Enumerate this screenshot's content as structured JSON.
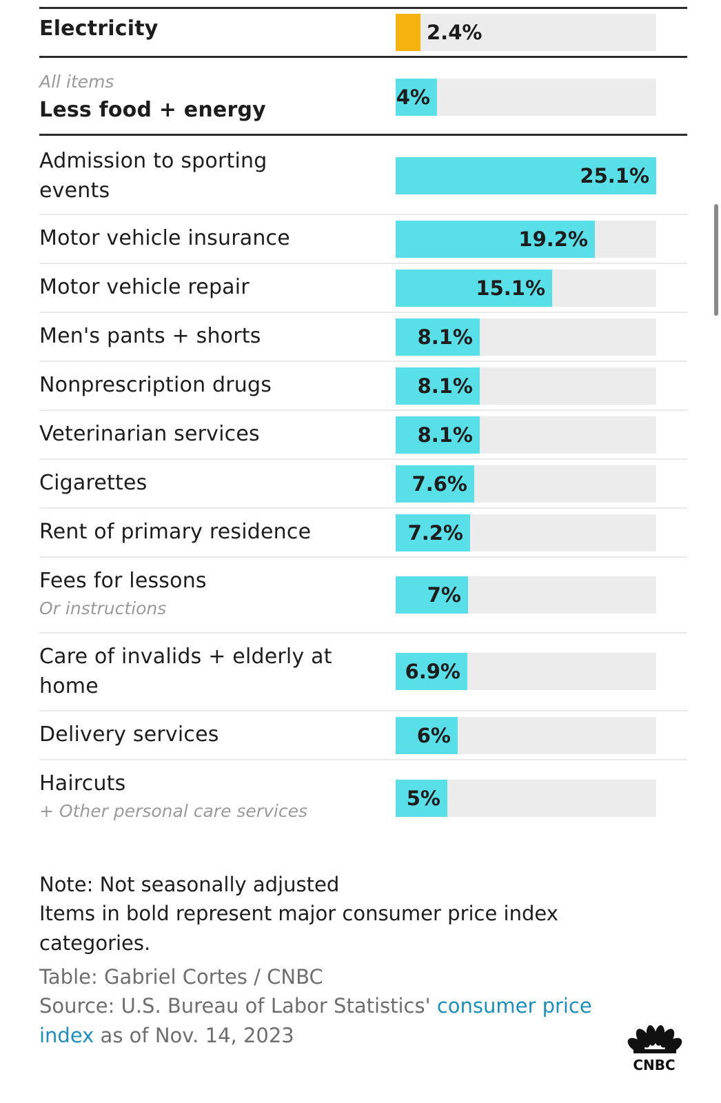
{
  "chart_data": {
    "type": "bar",
    "orientation": "horizontal",
    "xlim": [
      0,
      25.1
    ],
    "rows": [
      {
        "label": "Electricity",
        "sublabel_above": "",
        "sublabel_below": "",
        "value": 2.4,
        "value_label": "2.4%",
        "bold": true,
        "color": "#F6B30E"
      },
      {
        "label": "Less food + energy",
        "sublabel_above": "All items",
        "sublabel_below": "",
        "value": 4,
        "value_label": "4%",
        "bold": true,
        "color": "#59DFE8"
      },
      {
        "label": "Admission to sporting events",
        "sublabel_above": "",
        "sublabel_below": "",
        "value": 25.1,
        "value_label": "25.1%",
        "bold": false,
        "color": "#59DFE8"
      },
      {
        "label": "Motor vehicle insurance",
        "sublabel_above": "",
        "sublabel_below": "",
        "value": 19.2,
        "value_label": "19.2%",
        "bold": false,
        "color": "#59DFE8"
      },
      {
        "label": "Motor vehicle repair",
        "sublabel_above": "",
        "sublabel_below": "",
        "value": 15.1,
        "value_label": "15.1%",
        "bold": false,
        "color": "#59DFE8"
      },
      {
        "label": "Men's pants + shorts",
        "sublabel_above": "",
        "sublabel_below": "",
        "value": 8.1,
        "value_label": "8.1%",
        "bold": false,
        "color": "#59DFE8"
      },
      {
        "label": "Nonprescription drugs",
        "sublabel_above": "",
        "sublabel_below": "",
        "value": 8.1,
        "value_label": "8.1%",
        "bold": false,
        "color": "#59DFE8"
      },
      {
        "label": "Veterinarian services",
        "sublabel_above": "",
        "sublabel_below": "",
        "value": 8.1,
        "value_label": "8.1%",
        "bold": false,
        "color": "#59DFE8"
      },
      {
        "label": "Cigarettes",
        "sublabel_above": "",
        "sublabel_below": "",
        "value": 7.6,
        "value_label": "7.6%",
        "bold": false,
        "color": "#59DFE8"
      },
      {
        "label": "Rent of primary residence",
        "sublabel_above": "",
        "sublabel_below": "",
        "value": 7.2,
        "value_label": "7.2%",
        "bold": false,
        "color": "#59DFE8"
      },
      {
        "label": "Fees for lessons",
        "sublabel_above": "",
        "sublabel_below": "Or instructions",
        "value": 7,
        "value_label": "7%",
        "bold": false,
        "color": "#59DFE8"
      },
      {
        "label": "Care of invalids + elderly at home",
        "sublabel_above": "",
        "sublabel_below": "",
        "value": 6.9,
        "value_label": "6.9%",
        "bold": false,
        "color": "#59DFE8"
      },
      {
        "label": "Delivery services",
        "sublabel_above": "",
        "sublabel_below": "",
        "value": 6,
        "value_label": "6%",
        "bold": false,
        "color": "#59DFE8"
      },
      {
        "label": "Haircuts",
        "sublabel_above": "",
        "sublabel_below": "+ Other personal care services",
        "value": 5,
        "value_label": "5%",
        "bold": false,
        "color": "#59DFE8"
      }
    ]
  },
  "footer": {
    "note_line1": "Note: Not seasonally adjusted",
    "note_line2": "Items in bold represent major consumer price index categories.",
    "credit": "Table: Gabriel Cortes / CNBC",
    "source_prefix": "Source: U.S. Bureau of Labor Statistics' ",
    "source_link": "consumer price index",
    "source_suffix": " as of Nov. 14, 2023"
  },
  "logo": {
    "name": "CNBC",
    "text": "CNBC"
  }
}
